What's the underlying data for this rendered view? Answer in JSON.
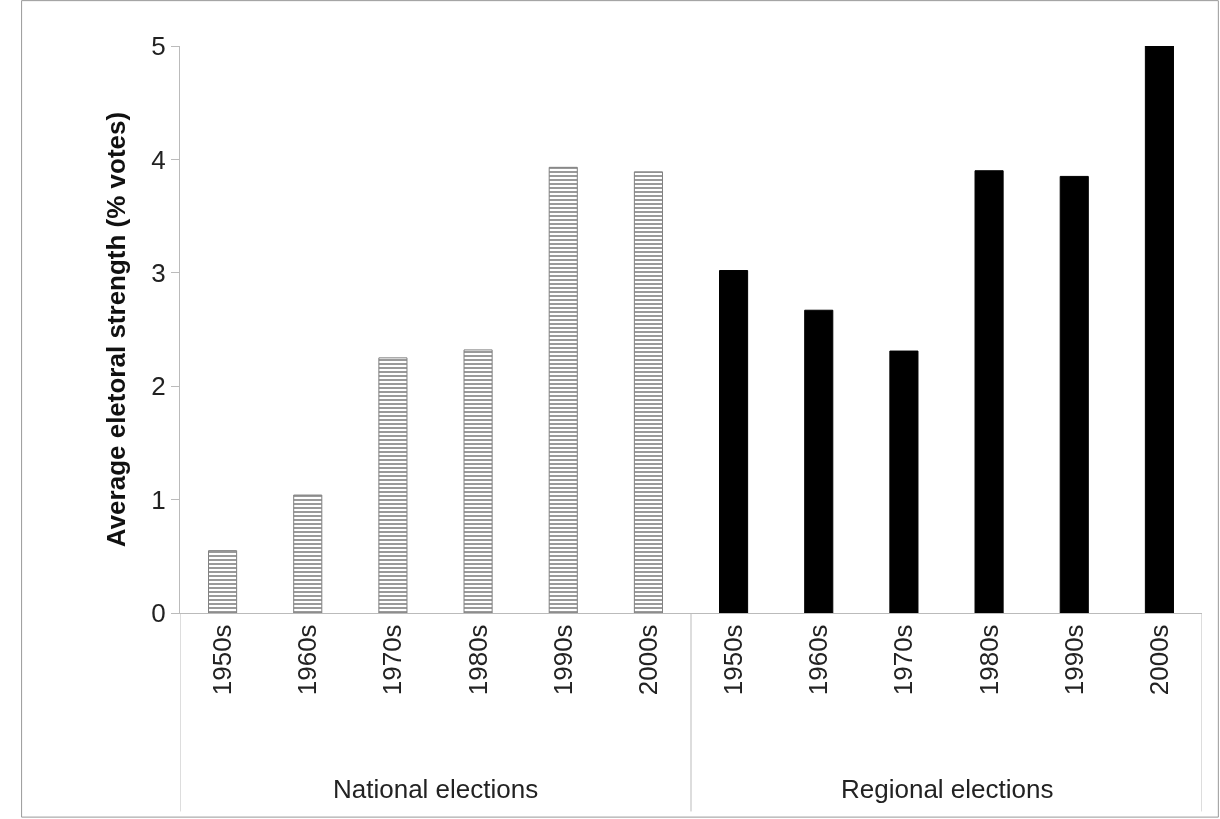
{
  "chart_data": {
    "type": "bar",
    "ylabel": "Average eletoral strength (% votes)",
    "categories": [
      "1950s",
      "1960s",
      "1970s",
      "1980s",
      "1990s",
      "2000s",
      "1950s",
      "1960s",
      "1970s",
      "1980s",
      "1990s",
      "2000s"
    ],
    "series": [
      {
        "color": "#808080",
        "values": [
          0.55,
          1.04,
          2.25,
          2.32,
          3.93,
          3.89,
          null,
          null,
          null,
          null,
          null,
          null
        ]
      },
      {
        "color": "#000000",
        "values": [
          null,
          null,
          null,
          null,
          null,
          null,
          3.02,
          2.67,
          2.31,
          3.9,
          3.85,
          5.0
        ]
      }
    ],
    "annotations": [
      "National elections",
      "Regional elections"
    ],
    "ylim": [
      0,
      5
    ],
    "yticks": [
      0,
      1,
      2,
      3,
      4,
      5
    ],
    "grid": false,
    "legend": false
  }
}
